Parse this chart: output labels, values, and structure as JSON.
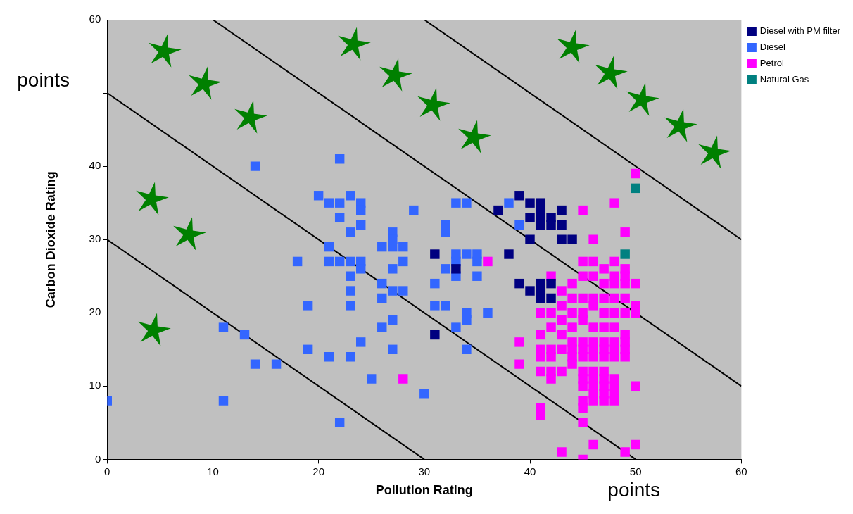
{
  "chart_data": {
    "type": "scatter",
    "xlabel": "Pollution Rating",
    "ylabel": "Carbon Dioxide Rating",
    "xlim": [
      0,
      60
    ],
    "xticks": [
      0,
      10,
      20,
      30,
      40,
      50,
      60
    ],
    "ylim": [
      0,
      60
    ],
    "yticks": [
      0,
      10,
      20,
      30,
      40,
      {
        "value": 50,
        "label": null
      },
      60
    ],
    "grid": false,
    "legend": "top right",
    "marker": "square",
    "annotations": [
      "points",
      "points"
    ],
    "series": [
      {
        "name": "Diesel with PM filter",
        "color": "#000080",
        "x": [
          31,
          31,
          33,
          37,
          38,
          39,
          40,
          40,
          41,
          41,
          41,
          41,
          42,
          42,
          43,
          43,
          43,
          44,
          40,
          39,
          40,
          41,
          41,
          41,
          42,
          42
        ],
        "values": [
          28,
          17,
          26,
          34,
          28,
          36,
          35,
          33,
          35,
          34,
          33,
          32,
          33,
          32,
          34,
          32,
          30,
          30,
          30,
          24,
          23,
          24,
          23,
          22,
          24,
          22
        ]
      },
      {
        "name": "Diesel",
        "color": "#3366ff",
        "x": [
          0,
          11,
          22,
          11,
          13,
          14,
          16,
          19,
          21,
          23,
          19,
          14,
          22,
          18,
          20,
          21,
          22,
          23,
          24,
          24,
          22,
          23,
          24,
          21,
          21,
          22,
          23,
          24,
          24,
          23,
          23,
          23,
          24,
          25,
          26,
          27,
          27,
          27,
          28,
          28,
          27,
          26,
          26,
          27,
          28,
          26,
          27,
          27,
          29,
          30,
          31,
          31,
          32,
          32,
          32,
          32,
          33,
          34,
          33,
          34,
          35,
          33,
          33,
          35,
          35,
          34,
          34,
          33,
          34,
          36,
          38,
          39
        ],
        "values": [
          8,
          8,
          5,
          18,
          17,
          13,
          13,
          15,
          14,
          14,
          21,
          40,
          41,
          27,
          36,
          35,
          35,
          36,
          35,
          34,
          33,
          31,
          32,
          29,
          27,
          27,
          27,
          27,
          26,
          25,
          23,
          21,
          16,
          11,
          29,
          31,
          30,
          29,
          29,
          27,
          26,
          24,
          22,
          23,
          23,
          18,
          19,
          15,
          34,
          9,
          24,
          21,
          21,
          26,
          31,
          32,
          35,
          35,
          28,
          28,
          28,
          27,
          25,
          27,
          25,
          20,
          19,
          18,
          15,
          20,
          35,
          32
        ]
      },
      {
        "name": "Petrol",
        "color": "#ff00ff",
        "x": [
          50,
          45,
          48,
          36,
          28,
          46,
          49,
          42,
          45,
          46,
          47,
          48,
          48,
          49,
          49,
          47,
          48,
          49,
          50,
          46,
          45,
          43,
          44,
          45,
          46,
          47,
          48,
          49,
          50,
          50,
          41,
          42,
          43,
          44,
          45,
          46,
          47,
          48,
          49,
          42,
          43,
          44,
          45,
          46,
          47,
          48,
          49,
          43,
          44,
          45,
          46,
          47,
          48,
          49,
          41,
          42,
          43,
          44,
          45,
          46,
          47,
          48,
          49,
          39,
          39,
          41,
          42,
          44,
          45,
          46,
          47,
          48,
          49,
          41,
          42,
          43,
          44,
          45,
          46,
          47,
          45,
          46,
          47,
          48,
          45,
          46,
          47,
          48,
          50,
          46,
          47,
          48,
          45,
          46,
          47,
          48,
          41,
          41,
          45,
          45,
          43,
          45,
          46,
          49,
          50,
          42,
          44,
          41
        ],
        "values": [
          39,
          34,
          35,
          27,
          11,
          30,
          31,
          25,
          27,
          27,
          26,
          27,
          25,
          26,
          25,
          24,
          24,
          24,
          24,
          25,
          25,
          23,
          22,
          22,
          22,
          22,
          22,
          22,
          21,
          20,
          20,
          20,
          21,
          20,
          20,
          21,
          20,
          20,
          20,
          18,
          19,
          18,
          19,
          18,
          18,
          18,
          17,
          17,
          16,
          16,
          16,
          16,
          16,
          16,
          15,
          15,
          15,
          15,
          15,
          15,
          15,
          15,
          15,
          16,
          13,
          14,
          14,
          14,
          14,
          14,
          14,
          14,
          14,
          12,
          12,
          12,
          13,
          12,
          12,
          12,
          11,
          11,
          11,
          11,
          10,
          10,
          10,
          10,
          10,
          9,
          9,
          9,
          8,
          8,
          8,
          8,
          7,
          6,
          7,
          5,
          1,
          0,
          2,
          1,
          2,
          11,
          24,
          17
        ]
      },
      {
        "name": "Natural Gas",
        "color": "#008080",
        "x": [
          50,
          49
        ],
        "values": [
          37,
          28
        ]
      },
      {
        "type": "line",
        "marker": "none",
        "color": "#000000",
        "x": [
          0,
          30
        ],
        "values": [
          30,
          0
        ]
      },
      {
        "type": "line",
        "marker": "none",
        "color": "#000000",
        "x": [
          0,
          50
        ],
        "values": [
          50,
          0
        ]
      },
      {
        "type": "line",
        "marker": "none",
        "color": "#000000",
        "x": [
          10,
          60
        ],
        "values": [
          60,
          10
        ]
      },
      {
        "type": "line",
        "marker": "none",
        "color": "#000000",
        "x": [
          30,
          60
        ],
        "values": [
          60,
          30
        ]
      }
    ]
  }
}
